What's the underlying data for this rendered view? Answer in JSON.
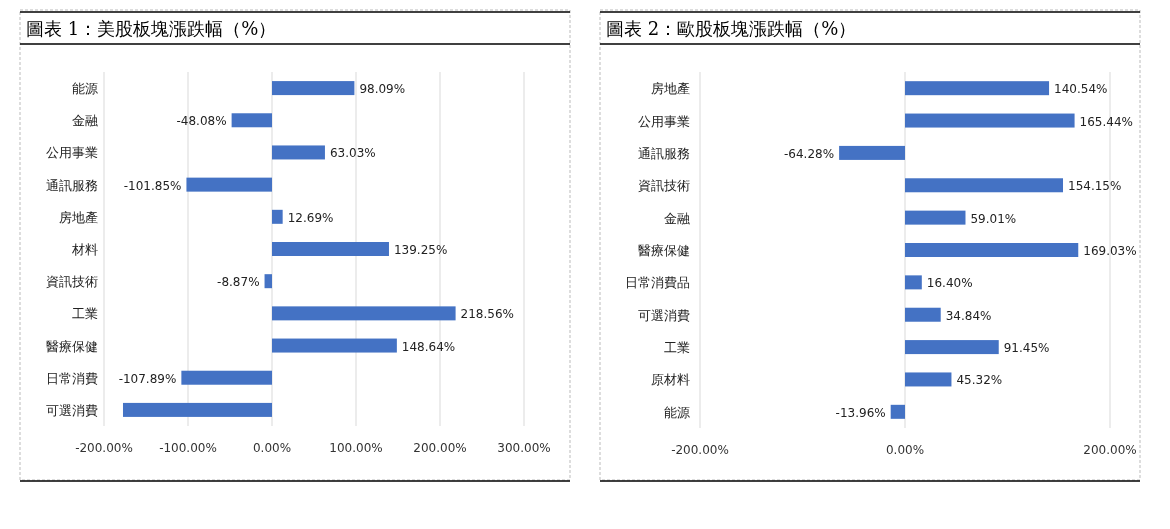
{
  "chart_data": [
    {
      "type": "bar",
      "orientation": "horizontal",
      "title": "圖表 1：美股板塊漲跌幅（%）",
      "categories": [
        "能源",
        "金融",
        "公用事業",
        "通訊服務",
        "房地產",
        "材料",
        "資訊技術",
        "工業",
        "醫療保健",
        "日常消費",
        "可選消費"
      ],
      "values": [
        98.09,
        -48.08,
        63.03,
        -101.85,
        12.69,
        139.25,
        -8.87,
        218.56,
        148.64,
        -107.89,
        -177.4
      ],
      "value_labels": [
        "98.09%",
        "-48.08%",
        "63.03%",
        "-101.85%",
        "12.69%",
        "139.25%",
        "-8.87%",
        "218.56%",
        "148.64%",
        "-107.89%",
        null
      ],
      "color": "#4472c4",
      "xlim": [
        -200,
        300
      ],
      "xticks": [
        {
          "value": -200,
          "label": "-200.00%"
        },
        {
          "value": -100,
          "label": "-100.00%"
        },
        {
          "value": 0,
          "label": "0.00%"
        },
        {
          "value": 100,
          "label": "100.00%"
        },
        {
          "value": 200,
          "label": "200.00%"
        },
        {
          "value": 300,
          "label": "300.00%"
        }
      ],
      "grid": "x"
    },
    {
      "type": "bar",
      "orientation": "horizontal",
      "title": "圖表 2：歐股板塊漲跌幅（%）",
      "categories": [
        "房地產",
        "公用事業",
        "通訊服務",
        "資訊技術",
        "金融",
        "醫療保健",
        "日常消費品",
        "可選消費",
        "工業",
        "原材料",
        "能源"
      ],
      "values": [
        140.54,
        165.44,
        -64.28,
        154.15,
        59.01,
        169.03,
        16.4,
        34.84,
        91.45,
        45.32,
        -13.96
      ],
      "value_labels": [
        "140.54%",
        "165.44%",
        "-64.28%",
        "154.15%",
        "59.01%",
        "169.03%",
        "16.40%",
        "34.84%",
        "91.45%",
        "45.32%",
        "-13.96%"
      ],
      "color": "#4472c4",
      "xlim": [
        -200,
        200
      ],
      "xticks": [
        {
          "value": -200,
          "label": "-200.00%"
        },
        {
          "value": 0,
          "label": "0.00%"
        },
        {
          "value": 200,
          "label": "200.00%"
        }
      ],
      "grid": "x"
    }
  ]
}
